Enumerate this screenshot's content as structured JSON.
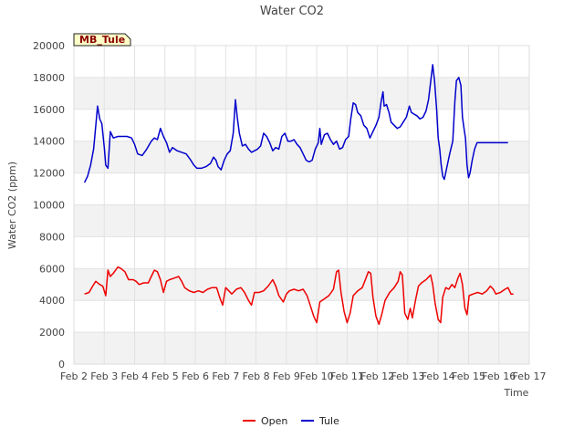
{
  "chart_data": {
    "type": "line",
    "title": "Water CO2",
    "xlabel": "Time",
    "ylabel": "Water CO2 (ppm)",
    "site_label": "MB_Tule",
    "ylim": [
      0,
      20000
    ],
    "yticks": [
      0,
      2000,
      4000,
      6000,
      8000,
      10000,
      12000,
      14000,
      16000,
      18000,
      20000
    ],
    "xlim": [
      2,
      17
    ],
    "xticks": [
      {
        "day": 2,
        "label": "Feb 2"
      },
      {
        "day": 3,
        "label": "Feb 3"
      },
      {
        "day": 4,
        "label": "Feb 4"
      },
      {
        "day": 5,
        "label": "Feb 5"
      },
      {
        "day": 6,
        "label": "Feb 6"
      },
      {
        "day": 7,
        "label": "Feb 7"
      },
      {
        "day": 8,
        "label": "Feb 8"
      },
      {
        "day": 9,
        "label": "Feb 9"
      },
      {
        "day": 10,
        "label": "Feb 10"
      },
      {
        "day": 11,
        "label": "Feb 11"
      },
      {
        "day": 12,
        "label": "Feb 12"
      },
      {
        "day": 13,
        "label": "Feb 13"
      },
      {
        "day": 14,
        "label": "Feb 14"
      },
      {
        "day": 15,
        "label": "Feb 15"
      },
      {
        "day": 16,
        "label": "Feb 16"
      },
      {
        "day": 17,
        "label": "Feb 17"
      }
    ],
    "grid": true,
    "legend_position": "bottom-center",
    "series": [
      {
        "name": "Open",
        "color": "#ee0000",
        "points": [
          [
            2.35,
            4400
          ],
          [
            2.5,
            4500
          ],
          [
            2.62,
            4900
          ],
          [
            2.72,
            5200
          ],
          [
            2.85,
            5000
          ],
          [
            2.95,
            4900
          ],
          [
            3.05,
            4300
          ],
          [
            3.12,
            5900
          ],
          [
            3.2,
            5500
          ],
          [
            3.3,
            5700
          ],
          [
            3.45,
            6100
          ],
          [
            3.55,
            6000
          ],
          [
            3.68,
            5800
          ],
          [
            3.8,
            5300
          ],
          [
            3.95,
            5300
          ],
          [
            4.05,
            5200
          ],
          [
            4.15,
            5000
          ],
          [
            4.3,
            5100
          ],
          [
            4.45,
            5100
          ],
          [
            4.55,
            5500
          ],
          [
            4.65,
            5900
          ],
          [
            4.75,
            5800
          ],
          [
            4.85,
            5300
          ],
          [
            4.95,
            4500
          ],
          [
            5.05,
            5200
          ],
          [
            5.15,
            5300
          ],
          [
            5.3,
            5400
          ],
          [
            5.45,
            5500
          ],
          [
            5.55,
            5200
          ],
          [
            5.65,
            4800
          ],
          [
            5.8,
            4600
          ],
          [
            5.95,
            4500
          ],
          [
            6.1,
            4600
          ],
          [
            6.25,
            4500
          ],
          [
            6.4,
            4700
          ],
          [
            6.55,
            4800
          ],
          [
            6.7,
            4800
          ],
          [
            6.8,
            4200
          ],
          [
            6.9,
            3700
          ],
          [
            7.0,
            4800
          ],
          [
            7.1,
            4600
          ],
          [
            7.2,
            4400
          ],
          [
            7.35,
            4700
          ],
          [
            7.5,
            4800
          ],
          [
            7.62,
            4500
          ],
          [
            7.75,
            4000
          ],
          [
            7.85,
            3700
          ],
          [
            7.95,
            4500
          ],
          [
            8.1,
            4500
          ],
          [
            8.25,
            4600
          ],
          [
            8.4,
            4900
          ],
          [
            8.55,
            5300
          ],
          [
            8.65,
            4900
          ],
          [
            8.75,
            4300
          ],
          [
            8.9,
            3900
          ],
          [
            9.0,
            4400
          ],
          [
            9.1,
            4600
          ],
          [
            9.25,
            4700
          ],
          [
            9.4,
            4600
          ],
          [
            9.55,
            4700
          ],
          [
            9.68,
            4300
          ],
          [
            9.8,
            3600
          ],
          [
            9.9,
            3000
          ],
          [
            10.0,
            2600
          ],
          [
            10.1,
            3900
          ],
          [
            10.25,
            4100
          ],
          [
            10.4,
            4300
          ],
          [
            10.55,
            4700
          ],
          [
            10.65,
            5800
          ],
          [
            10.72,
            5900
          ],
          [
            10.8,
            4500
          ],
          [
            10.9,
            3300
          ],
          [
            11.0,
            2600
          ],
          [
            11.1,
            3200
          ],
          [
            11.2,
            4300
          ],
          [
            11.35,
            4600
          ],
          [
            11.5,
            4800
          ],
          [
            11.6,
            5300
          ],
          [
            11.7,
            5800
          ],
          [
            11.78,
            5700
          ],
          [
            11.85,
            4200
          ],
          [
            11.95,
            3000
          ],
          [
            12.05,
            2500
          ],
          [
            12.15,
            3200
          ],
          [
            12.25,
            4000
          ],
          [
            12.4,
            4500
          ],
          [
            12.55,
            4800
          ],
          [
            12.68,
            5200
          ],
          [
            12.75,
            5800
          ],
          [
            12.82,
            5600
          ],
          [
            12.9,
            3200
          ],
          [
            13.0,
            2800
          ],
          [
            13.08,
            3500
          ],
          [
            13.15,
            2900
          ],
          [
            13.25,
            4000
          ],
          [
            13.35,
            4900
          ],
          [
            13.45,
            5100
          ],
          [
            13.6,
            5300
          ],
          [
            13.75,
            5600
          ],
          [
            13.82,
            5000
          ],
          [
            13.9,
            3800
          ],
          [
            14.0,
            2800
          ],
          [
            14.08,
            2600
          ],
          [
            14.15,
            4200
          ],
          [
            14.25,
            4800
          ],
          [
            14.35,
            4700
          ],
          [
            14.45,
            5000
          ],
          [
            14.55,
            4800
          ],
          [
            14.65,
            5400
          ],
          [
            14.72,
            5700
          ],
          [
            14.8,
            5000
          ],
          [
            14.88,
            3500
          ],
          [
            14.95,
            3100
          ],
          [
            15.02,
            4300
          ],
          [
            15.15,
            4400
          ],
          [
            15.3,
            4500
          ],
          [
            15.45,
            4400
          ],
          [
            15.6,
            4600
          ],
          [
            15.72,
            4900
          ],
          [
            15.82,
            4700
          ],
          [
            15.9,
            4400
          ],
          [
            16.05,
            4500
          ],
          [
            16.2,
            4700
          ],
          [
            16.3,
            4800
          ],
          [
            16.4,
            4400
          ],
          [
            16.48,
            4400
          ]
        ]
      },
      {
        "name": "Tule",
        "color": "#0000cc",
        "points": [
          [
            2.35,
            11400
          ],
          [
            2.45,
            11800
          ],
          [
            2.55,
            12500
          ],
          [
            2.65,
            13500
          ],
          [
            2.72,
            15000
          ],
          [
            2.78,
            16200
          ],
          [
            2.85,
            15400
          ],
          [
            2.92,
            15100
          ],
          [
            3.0,
            13600
          ],
          [
            3.05,
            12500
          ],
          [
            3.12,
            12300
          ],
          [
            3.2,
            14600
          ],
          [
            3.3,
            14200
          ],
          [
            3.45,
            14300
          ],
          [
            3.6,
            14300
          ],
          [
            3.75,
            14300
          ],
          [
            3.9,
            14200
          ],
          [
            4.0,
            13800
          ],
          [
            4.1,
            13200
          ],
          [
            4.25,
            13100
          ],
          [
            4.4,
            13500
          ],
          [
            4.55,
            14000
          ],
          [
            4.65,
            14200
          ],
          [
            4.75,
            14100
          ],
          [
            4.85,
            14800
          ],
          [
            4.95,
            14300
          ],
          [
            5.05,
            13900
          ],
          [
            5.15,
            13300
          ],
          [
            5.25,
            13600
          ],
          [
            5.4,
            13400
          ],
          [
            5.55,
            13300
          ],
          [
            5.7,
            13200
          ],
          [
            5.85,
            12800
          ],
          [
            5.95,
            12500
          ],
          [
            6.05,
            12300
          ],
          [
            6.2,
            12300
          ],
          [
            6.35,
            12400
          ],
          [
            6.5,
            12600
          ],
          [
            6.6,
            13000
          ],
          [
            6.68,
            12800
          ],
          [
            6.75,
            12400
          ],
          [
            6.85,
            12200
          ],
          [
            6.95,
            12800
          ],
          [
            7.05,
            13200
          ],
          [
            7.15,
            13400
          ],
          [
            7.25,
            14500
          ],
          [
            7.32,
            16600
          ],
          [
            7.38,
            15500
          ],
          [
            7.45,
            14500
          ],
          [
            7.55,
            13700
          ],
          [
            7.65,
            13800
          ],
          [
            7.75,
            13500
          ],
          [
            7.85,
            13300
          ],
          [
            7.95,
            13400
          ],
          [
            8.05,
            13500
          ],
          [
            8.15,
            13700
          ],
          [
            8.25,
            14500
          ],
          [
            8.35,
            14300
          ],
          [
            8.45,
            13900
          ],
          [
            8.55,
            13400
          ],
          [
            8.65,
            13600
          ],
          [
            8.75,
            13500
          ],
          [
            8.85,
            14300
          ],
          [
            8.95,
            14500
          ],
          [
            9.05,
            14000
          ],
          [
            9.15,
            14000
          ],
          [
            9.25,
            14100
          ],
          [
            9.35,
            13800
          ],
          [
            9.45,
            13600
          ],
          [
            9.55,
            13200
          ],
          [
            9.65,
            12800
          ],
          [
            9.75,
            12700
          ],
          [
            9.85,
            12800
          ],
          [
            9.95,
            13500
          ],
          [
            10.05,
            13900
          ],
          [
            10.1,
            14800
          ],
          [
            10.15,
            13800
          ],
          [
            10.25,
            14400
          ],
          [
            10.35,
            14500
          ],
          [
            10.45,
            14100
          ],
          [
            10.55,
            13800
          ],
          [
            10.65,
            14000
          ],
          [
            10.75,
            13500
          ],
          [
            10.85,
            13600
          ],
          [
            10.95,
            14100
          ],
          [
            11.05,
            14300
          ],
          [
            11.12,
            15400
          ],
          [
            11.2,
            16400
          ],
          [
            11.28,
            16300
          ],
          [
            11.35,
            15800
          ],
          [
            11.45,
            15600
          ],
          [
            11.55,
            15000
          ],
          [
            11.65,
            14800
          ],
          [
            11.75,
            14200
          ],
          [
            11.85,
            14600
          ],
          [
            11.95,
            15000
          ],
          [
            12.05,
            15500
          ],
          [
            12.12,
            16500
          ],
          [
            12.18,
            17100
          ],
          [
            12.22,
            16200
          ],
          [
            12.3,
            16300
          ],
          [
            12.38,
            15800
          ],
          [
            12.45,
            15200
          ],
          [
            12.55,
            15000
          ],
          [
            12.65,
            14800
          ],
          [
            12.75,
            14900
          ],
          [
            12.85,
            15200
          ],
          [
            12.95,
            15500
          ],
          [
            13.05,
            16200
          ],
          [
            13.12,
            15800
          ],
          [
            13.2,
            15700
          ],
          [
            13.3,
            15600
          ],
          [
            13.4,
            15400
          ],
          [
            13.5,
            15500
          ],
          [
            13.6,
            15900
          ],
          [
            13.68,
            16600
          ],
          [
            13.75,
            17700
          ],
          [
            13.82,
            18800
          ],
          [
            13.88,
            17800
          ],
          [
            13.95,
            16000
          ],
          [
            14.0,
            14200
          ],
          [
            14.05,
            13500
          ],
          [
            14.1,
            12500
          ],
          [
            14.15,
            11800
          ],
          [
            14.2,
            11600
          ],
          [
            14.28,
            12300
          ],
          [
            14.38,
            13200
          ],
          [
            14.48,
            14000
          ],
          [
            14.55,
            16500
          ],
          [
            14.6,
            17800
          ],
          [
            14.68,
            18000
          ],
          [
            14.75,
            17500
          ],
          [
            14.8,
            15500
          ],
          [
            14.85,
            14800
          ],
          [
            14.9,
            14200
          ],
          [
            14.95,
            12500
          ],
          [
            15.0,
            11700
          ],
          [
            15.05,
            12000
          ],
          [
            15.12,
            12800
          ],
          [
            15.2,
            13500
          ],
          [
            15.28,
            13900
          ],
          [
            16.3,
            13900
          ]
        ]
      }
    ]
  }
}
